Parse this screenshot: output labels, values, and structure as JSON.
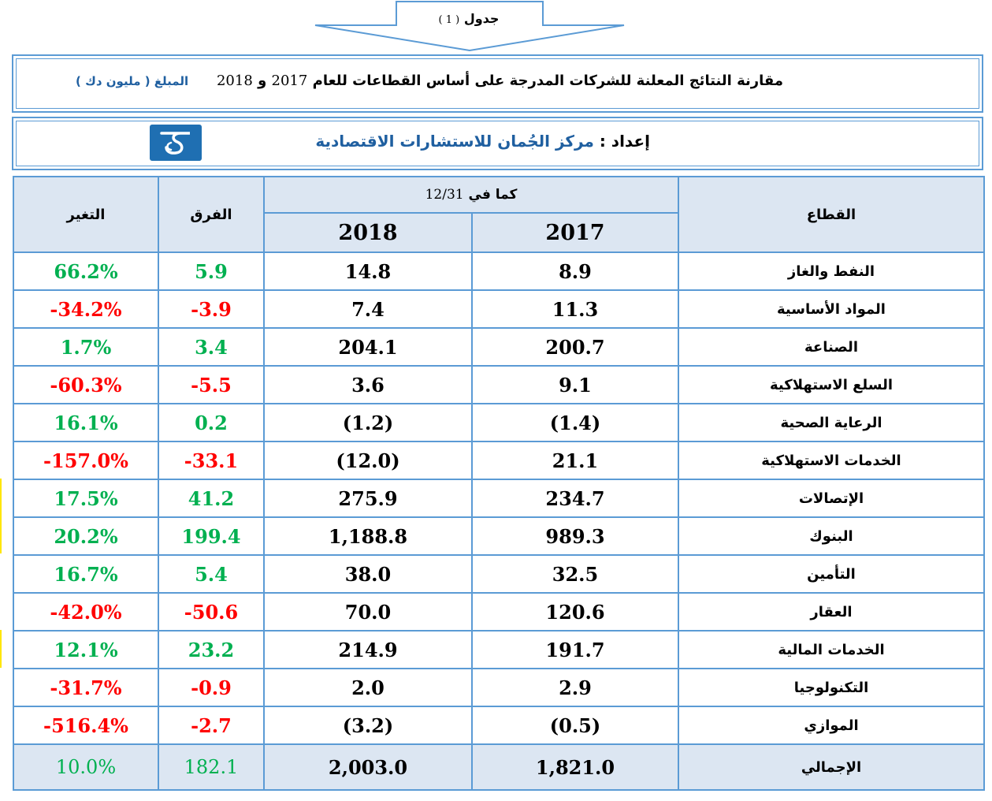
{
  "caption": {
    "label": "جدول",
    "number": "( 1 )"
  },
  "report": {
    "title_text": "مقارنة النتائج المعلنة للشركات المدرجة على أساس القطاعات للعام",
    "year_a": "2017",
    "joiner": "و",
    "year_b": "2018",
    "amount_label": "المبلغ ( مليون دك )"
  },
  "prepared": {
    "label": "إعداد :",
    "org": "مركز الجُمان للاستشارات الاقتصادية"
  },
  "colors": {
    "border": "#5b9bd5",
    "header_bg": "#dce6f2",
    "positive": "#00b050",
    "negative": "#ff0000",
    "org": "#1f5fa0"
  },
  "table": {
    "headers": {
      "sector": "القطاع",
      "as_of_label": "كما في",
      "as_of_date": "12/31",
      "year_2017": "2017",
      "year_2018": "2018",
      "diff": "الفرق",
      "change": "التغير"
    },
    "rows": [
      {
        "sector": "النفط والغاز",
        "y2017": "8.9",
        "y2018": "14.8",
        "diff": "5.9",
        "change": "66.2%",
        "sign": "pos"
      },
      {
        "sector": "المواد الأساسية",
        "y2017": "11.3",
        "y2018": "7.4",
        "diff": "-3.9",
        "change": "-34.2%",
        "sign": "neg"
      },
      {
        "sector": "الصناعة",
        "y2017": "200.7",
        "y2018": "204.1",
        "diff": "3.4",
        "change": "1.7%",
        "sign": "pos"
      },
      {
        "sector": "السلع الاستهلاكية",
        "y2017": "9.1",
        "y2018": "3.6",
        "diff": "-5.5",
        "change": "-60.3%",
        "sign": "neg"
      },
      {
        "sector": "الرعاية الصحية",
        "y2017": "(1.4)",
        "y2018": "(1.2)",
        "diff": "0.2",
        "change": "16.1%",
        "sign": "pos"
      },
      {
        "sector": "الخدمات الاستهلاكية",
        "y2017": "21.1",
        "y2018": "(12.0)",
        "diff": "-33.1",
        "change": "-157.0%",
        "sign": "neg"
      },
      {
        "sector": "الإتصالات",
        "y2017": "234.7",
        "y2018": "275.9",
        "diff": "41.2",
        "change": "17.5%",
        "sign": "pos"
      },
      {
        "sector": "البنوك",
        "y2017": "989.3",
        "y2018": "1,188.8",
        "diff": "199.4",
        "change": "20.2%",
        "sign": "pos"
      },
      {
        "sector": "التأمين",
        "y2017": "32.5",
        "y2018": "38.0",
        "diff": "5.4",
        "change": "16.7%",
        "sign": "pos"
      },
      {
        "sector": "العقار",
        "y2017": "120.6",
        "y2018": "70.0",
        "diff": "-50.6",
        "change": "-42.0%",
        "sign": "neg"
      },
      {
        "sector": "الخدمات المالية",
        "y2017": "191.7",
        "y2018": "214.9",
        "diff": "23.2",
        "change": "12.1%",
        "sign": "pos"
      },
      {
        "sector": "التكنولوجيا",
        "y2017": "2.9",
        "y2018": "2.0",
        "diff": "-0.9",
        "change": "-31.7%",
        "sign": "neg"
      },
      {
        "sector": "الموازي",
        "y2017": "(0.5)",
        "y2018": "(3.2)",
        "diff": "-2.7",
        "change": "-516.4%",
        "sign": "neg"
      }
    ],
    "total": {
      "sector": "الإجمالي",
      "y2017": "1,821.0",
      "y2018": "2,003.0",
      "diff": "182.1",
      "change": "10.0%",
      "sign": "pos"
    }
  }
}
